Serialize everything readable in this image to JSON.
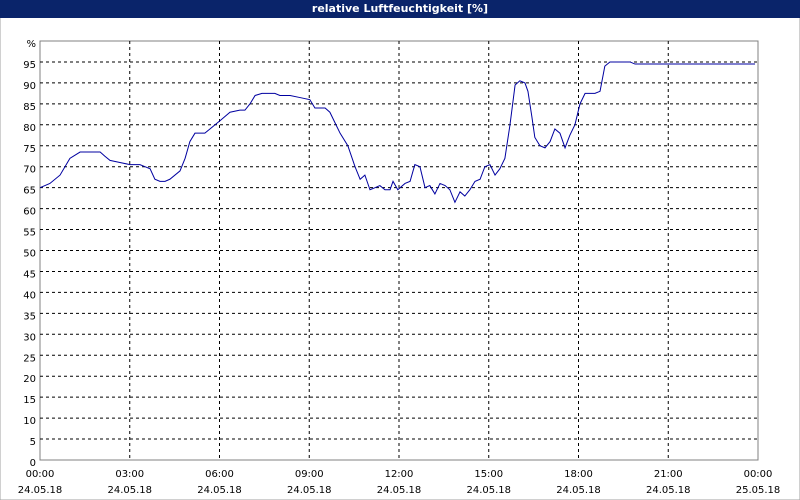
{
  "chart_data": {
    "type": "line",
    "title": "relative Luftfeuchtigkeit [%]",
    "xlim": [
      0,
      24
    ],
    "xticks": [
      {
        "value": 0,
        "label": "00:00"
      },
      {
        "value": 3,
        "label": "03:00"
      },
      {
        "value": 6,
        "label": "06:00"
      },
      {
        "value": 9,
        "label": "09:00"
      },
      {
        "value": 12,
        "label": "12:00"
      },
      {
        "value": 15,
        "label": "15:00"
      },
      {
        "value": 18,
        "label": "18:00"
      },
      {
        "value": 21,
        "label": "21:00"
      },
      {
        "value": 24,
        "label": "00:00"
      }
    ],
    "xtick_dates": [
      "24.05.18",
      "24.05.18",
      "24.05.18",
      "24.05.18",
      "24.05.18",
      "24.05.18",
      "24.05.18",
      "24.05.18",
      "25.05.18"
    ],
    "ylim": [
      0,
      100
    ],
    "yticks": [
      0,
      5,
      10,
      15,
      20,
      25,
      30,
      35,
      40,
      45,
      50,
      55,
      60,
      65,
      70,
      75,
      80,
      85,
      90,
      95,
      {
        "value": 100,
        "label": "%"
      }
    ],
    "grid": true,
    "series": [
      {
        "name": "relative Luftfeuchtigkeit",
        "color": "#0000a0",
        "x": [
          0,
          0.33,
          0.67,
          1.0,
          1.34,
          1.67,
          2.01,
          2.17,
          2.34,
          2.67,
          3.01,
          3.34,
          3.51,
          3.68,
          3.84,
          4.01,
          4.18,
          4.34,
          4.68,
          4.85,
          5.01,
          5.18,
          5.51,
          5.68,
          6.02,
          6.35,
          6.68,
          6.85,
          7.02,
          7.19,
          7.42,
          7.85,
          8.02,
          8.36,
          8.69,
          9.02,
          9.19,
          9.53,
          9.69,
          10.03,
          10.29,
          10.53,
          10.7,
          10.86,
          11.03,
          11.2,
          11.36,
          11.53,
          11.7,
          11.8,
          11.96,
          12.2,
          12.37,
          12.53,
          12.7,
          12.87,
          13.03,
          13.2,
          13.37,
          13.54,
          13.7,
          13.87,
          14.04,
          14.2,
          14.37,
          14.54,
          14.71,
          14.87,
          15.04,
          15.21,
          15.37,
          15.54,
          15.71,
          15.88,
          16.04,
          16.21,
          16.31,
          16.44,
          16.54,
          16.71,
          16.88,
          17.05,
          17.21,
          17.38,
          17.55,
          17.71,
          17.88,
          18.05,
          18.22,
          18.55,
          18.72,
          18.88,
          19.05,
          19.72,
          19.89,
          23.9
        ],
        "values": [
          65,
          66,
          68,
          72,
          73.5,
          73.5,
          73.5,
          72.5,
          71.5,
          71,
          70.5,
          70.5,
          70,
          69.5,
          67,
          66.5,
          66.5,
          67,
          69,
          72,
          76,
          78,
          78,
          79,
          81,
          83,
          83.5,
          83.5,
          85,
          87,
          87.5,
          87.5,
          87,
          87,
          86.5,
          86,
          84,
          84,
          83,
          78,
          75,
          70,
          67,
          68,
          64.5,
          65,
          65.5,
          64.5,
          64.5,
          66.5,
          64.5,
          66,
          66.5,
          70.5,
          70,
          65,
          65.5,
          63.5,
          66,
          65.5,
          64.5,
          61.5,
          64,
          63,
          64.5,
          66.5,
          67,
          70,
          70.5,
          68,
          69.5,
          72,
          80,
          89.5,
          90.5,
          90,
          88,
          82,
          77,
          75,
          74.5,
          76,
          79,
          78,
          74.5,
          77.5,
          80,
          85,
          87.5,
          87.5,
          88,
          94,
          95,
          95,
          94.5,
          94.5
        ]
      }
    ]
  }
}
